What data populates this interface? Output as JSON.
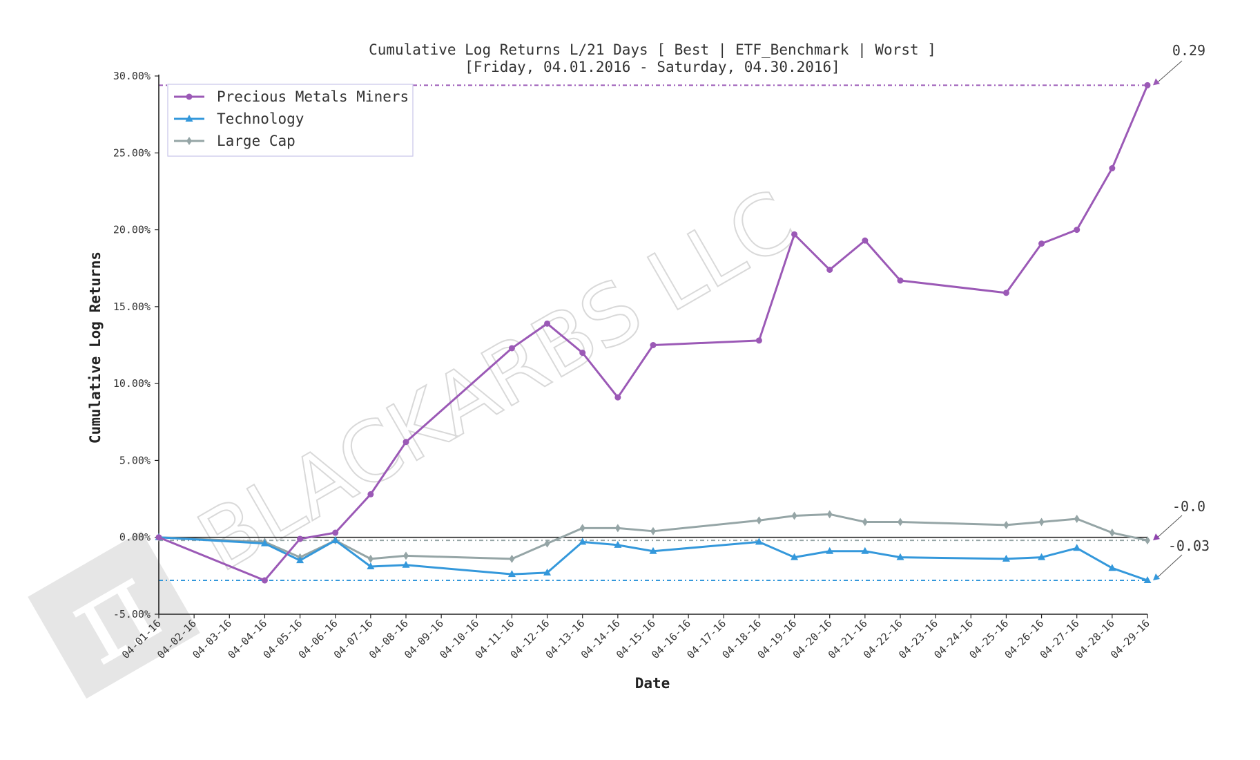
{
  "chart_data": {
    "type": "line",
    "title": "Cumulative Log Returns L/21 Days [ Best | ETF_Benchmark | Worst ]",
    "subtitle": "[Friday, 04.01.2016 - Saturday, 04.30.2016]",
    "xlabel": "Date",
    "ylabel": "Cumulative Log Returns",
    "ylim": [
      -0.05,
      0.3
    ],
    "yticks": [
      -0.05,
      0.0,
      0.05,
      0.1,
      0.15,
      0.2,
      0.25,
      0.3
    ],
    "ytick_labels": [
      "-5.00%",
      "0.00%",
      "5.00%",
      "10.00%",
      "15.00%",
      "20.00%",
      "25.00%",
      "30.00%"
    ],
    "xtick_labels": [
      "04-01-16",
      "04-02-16",
      "04-03-16",
      "04-04-16",
      "04-05-16",
      "04-06-16",
      "04-07-16",
      "04-08-16",
      "04-09-16",
      "04-10-16",
      "04-11-16",
      "04-12-16",
      "04-13-16",
      "04-14-16",
      "04-15-16",
      "04-16-16",
      "04-17-16",
      "04-18-16",
      "04-19-16",
      "04-20-16",
      "04-21-16",
      "04-22-16",
      "04-23-16",
      "04-24-16",
      "04-25-16",
      "04-26-16",
      "04-27-16",
      "04-28-16",
      "04-29-16"
    ],
    "grid": false,
    "legend_position": "top-left",
    "series": [
      {
        "name": "Precious Metals Miners",
        "color": "#9b59b6",
        "marker": "circle",
        "x": [
          "04-01-16",
          "04-04-16",
          "04-05-16",
          "04-06-16",
          "04-07-16",
          "04-08-16",
          "04-11-16",
          "04-12-16",
          "04-13-16",
          "04-14-16",
          "04-15-16",
          "04-18-16",
          "04-19-16",
          "04-20-16",
          "04-21-16",
          "04-22-16",
          "04-25-16",
          "04-26-16",
          "04-27-16",
          "04-28-16",
          "04-29-16"
        ],
        "values": [
          0.0,
          -0.028,
          -0.001,
          0.003,
          0.028,
          0.062,
          0.123,
          0.139,
          0.12,
          0.091,
          0.125,
          0.128,
          0.197,
          0.174,
          0.193,
          0.167,
          0.159,
          0.191,
          0.2,
          0.24,
          0.294
        ]
      },
      {
        "name": "Technology",
        "color": "#3498db",
        "marker": "triangle",
        "x": [
          "04-01-16",
          "04-04-16",
          "04-05-16",
          "04-06-16",
          "04-07-16",
          "04-08-16",
          "04-11-16",
          "04-12-16",
          "04-13-16",
          "04-14-16",
          "04-15-16",
          "04-18-16",
          "04-19-16",
          "04-20-16",
          "04-21-16",
          "04-22-16",
          "04-25-16",
          "04-26-16",
          "04-27-16",
          "04-28-16",
          "04-29-16"
        ],
        "values": [
          0.0,
          -0.004,
          -0.015,
          -0.002,
          -0.019,
          -0.018,
          -0.024,
          -0.023,
          -0.003,
          -0.005,
          -0.009,
          -0.003,
          -0.013,
          -0.009,
          -0.009,
          -0.013,
          -0.014,
          -0.013,
          -0.007,
          -0.02,
          -0.028
        ]
      },
      {
        "name": "Large Cap",
        "color": "#95a5a6",
        "marker": "diamond",
        "x": [
          "04-01-16",
          "04-04-16",
          "04-05-16",
          "04-06-16",
          "04-07-16",
          "04-08-16",
          "04-11-16",
          "04-12-16",
          "04-13-16",
          "04-14-16",
          "04-15-16",
          "04-18-16",
          "04-19-16",
          "04-20-16",
          "04-21-16",
          "04-22-16",
          "04-25-16",
          "04-26-16",
          "04-27-16",
          "04-28-16",
          "04-29-16"
        ],
        "values": [
          0.0,
          -0.003,
          -0.013,
          -0.002,
          -0.014,
          -0.012,
          -0.014,
          -0.004,
          0.006,
          0.006,
          0.004,
          0.011,
          0.014,
          0.015,
          0.01,
          0.01,
          0.008,
          0.01,
          0.012,
          0.003,
          -0.002
        ]
      }
    ],
    "reference_lines": [
      {
        "value": 0.294,
        "color": "#9b59b6",
        "style": "dashdot"
      },
      {
        "value": -0.002,
        "color": "#95a5a6",
        "style": "dashdot"
      },
      {
        "value": -0.028,
        "color": "#3498db",
        "style": "dashdot"
      }
    ],
    "annotations": [
      {
        "text": "0.29",
        "series": "Precious Metals Miners",
        "color": "#9b59b6"
      },
      {
        "text": "-0.0",
        "series": "Large Cap",
        "color": "#95a5a6"
      },
      {
        "text": "-0.03",
        "series": "Technology",
        "color": "#3498db"
      }
    ]
  },
  "watermark": {
    "text": "BLACKARBS LLC",
    "logo_glyph": "π",
    "color": "#e6e6e6"
  }
}
